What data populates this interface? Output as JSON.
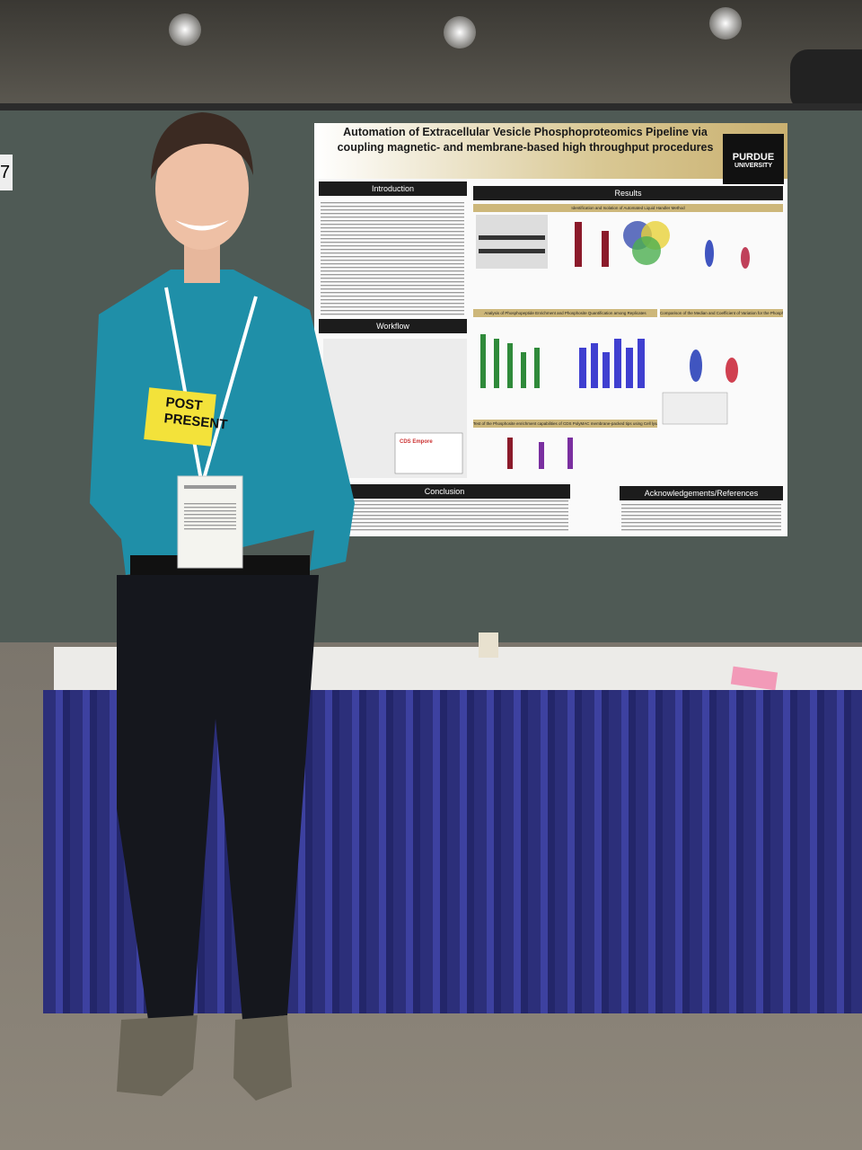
{
  "booth_number": "7",
  "poster": {
    "title_line1": "Automation of Extracellular Vesicle Phosphoproteomics Pipeline via",
    "title_line2": "coupling magnetic- and membrane-based high throughput procedures",
    "logo": [
      "PURDUE",
      "UNIVERSITY"
    ],
    "headers": {
      "introduction": "Introduction",
      "results": "Results",
      "workflow": "Workflow",
      "conclusion": "Conclusion",
      "acknowledgements": "Acknowledgements/References"
    },
    "subheaders": [
      "Identification and Isolation of Automated Liquid Handler Method",
      "Analysis of Phosphopeptide Enrichment and Phosphosite Quantification among Replicates",
      "Comparison of the Median and Coefficient of Variation for the Phosphopeptide Enrichment Methods",
      "Test of the Phosphosite enrichment capabilities of CDS PolyMAC membrane-packed tips using Cell lysate"
    ],
    "workflow_label": "CDS Empore"
  },
  "ribbon": [
    "POST",
    "PRESENT"
  ]
}
